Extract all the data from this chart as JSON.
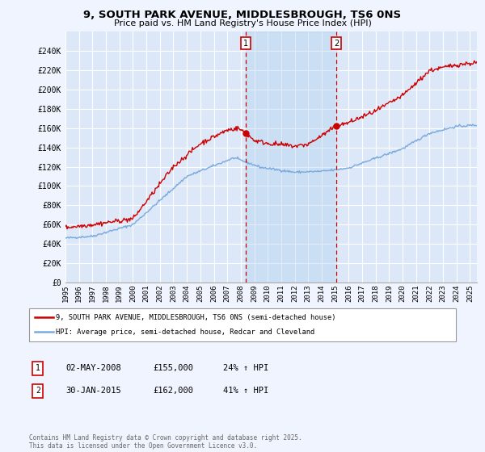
{
  "title": "9, SOUTH PARK AVENUE, MIDDLESBROUGH, TS6 0NS",
  "subtitle": "Price paid vs. HM Land Registry's House Price Index (HPI)",
  "ylabel_ticks": [
    "£0",
    "£20K",
    "£40K",
    "£60K",
    "£80K",
    "£100K",
    "£120K",
    "£140K",
    "£160K",
    "£180K",
    "£200K",
    "£220K",
    "£240K"
  ],
  "ytick_values": [
    0,
    20000,
    40000,
    60000,
    80000,
    100000,
    120000,
    140000,
    160000,
    180000,
    200000,
    220000,
    240000
  ],
  "ylim": [
    0,
    260000
  ],
  "background_color": "#f0f4ff",
  "plot_bg_color": "#dce8f8",
  "grid_color": "#ffffff",
  "shade_color": "#c8d8f0",
  "legend1_label": "9, SOUTH PARK AVENUE, MIDDLESBROUGH, TS6 0NS (semi-detached house)",
  "legend2_label": "HPI: Average price, semi-detached house, Redcar and Cleveland",
  "sale1_label": "1",
  "sale1_date": "02-MAY-2008",
  "sale1_price": "£155,000",
  "sale1_hpi": "24% ↑ HPI",
  "sale2_label": "2",
  "sale2_date": "30-JAN-2015",
  "sale2_price": "£162,000",
  "sale2_hpi": "41% ↑ HPI",
  "footer": "Contains HM Land Registry data © Crown copyright and database right 2025.\nThis data is licensed under the Open Government Licence v3.0.",
  "red_color": "#cc0000",
  "blue_color": "#7aaadd",
  "sale1_x": 2008.35,
  "sale2_x": 2015.08,
  "sale1_price_val": 155000,
  "sale2_price_val": 162000,
  "xmin": 1995,
  "xmax": 2025.5,
  "xtick_years": [
    1995,
    1996,
    1997,
    1998,
    1999,
    2000,
    2001,
    2002,
    2003,
    2004,
    2005,
    2006,
    2007,
    2008,
    2009,
    2010,
    2011,
    2012,
    2013,
    2014,
    2015,
    2016,
    2017,
    2018,
    2019,
    2020,
    2021,
    2022,
    2023,
    2024,
    2025
  ]
}
